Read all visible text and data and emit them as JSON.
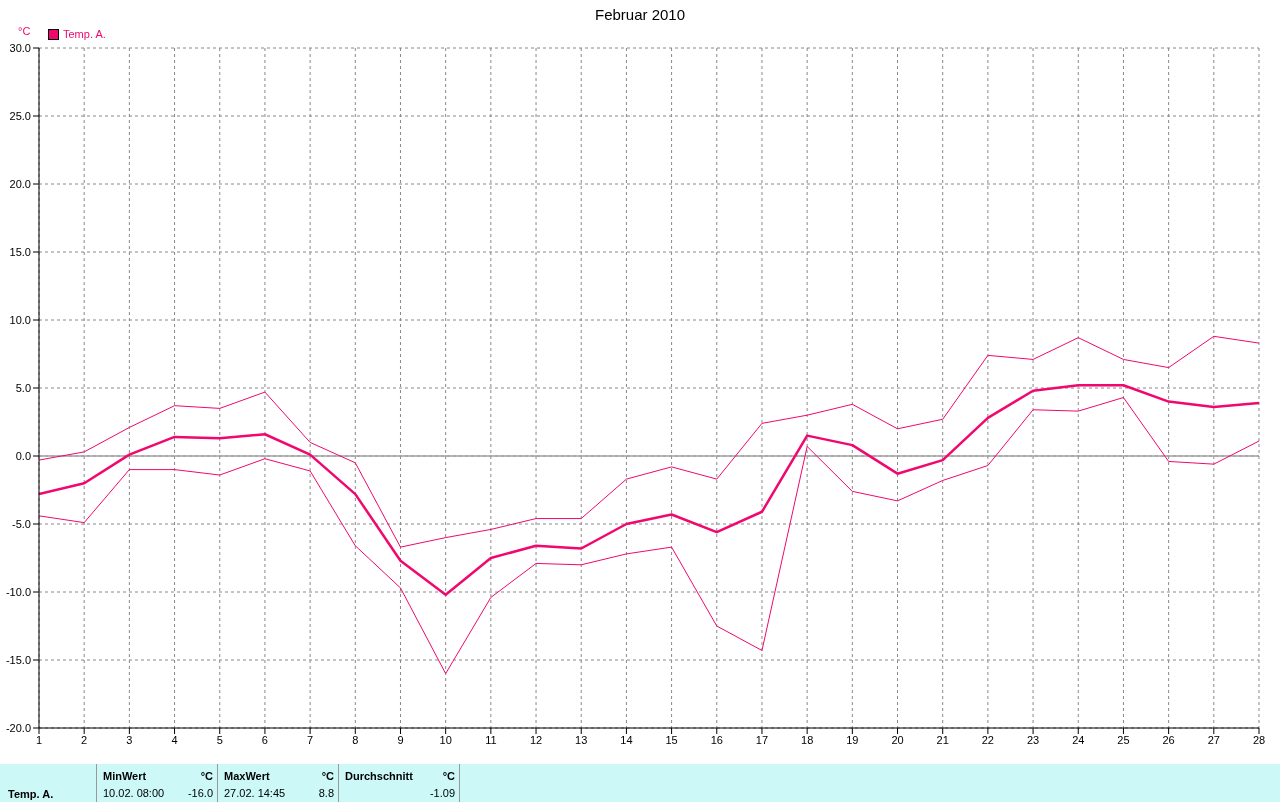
{
  "chart_data": {
    "type": "line",
    "title": "Februar 2010",
    "ylabel": "°C",
    "x": [
      1,
      2,
      3,
      4,
      5,
      6,
      7,
      8,
      9,
      10,
      11,
      12,
      13,
      14,
      15,
      16,
      17,
      18,
      19,
      20,
      21,
      22,
      23,
      24,
      25,
      26,
      27,
      28
    ],
    "series": [
      {
        "name": "Temp. A.",
        "color": "#f0086e",
        "values": [
          -2.8,
          -2.0,
          0.1,
          1.4,
          1.3,
          1.6,
          0.1,
          -2.8,
          -7.7,
          -10.2,
          -7.5,
          -6.6,
          -6.8,
          -5.0,
          -4.3,
          -5.6,
          -4.1,
          1.5,
          0.8,
          -1.3,
          -0.3,
          2.8,
          4.8,
          5.2,
          5.2,
          4.0,
          3.6,
          3.9
        ]
      },
      {
        "color": "#f0086e",
        "values": [
          -0.3,
          0.3,
          2.1,
          3.7,
          3.5,
          4.7,
          1.0,
          -0.5,
          -6.7,
          -6.0,
          -5.4,
          -4.6,
          -4.6,
          -1.7,
          -0.8,
          -1.7,
          2.4,
          3.0,
          3.8,
          2.0,
          2.7,
          7.4,
          7.1,
          8.7,
          7.1,
          6.5,
          8.8,
          8.3
        ]
      },
      {
        "color": "#f0086e",
        "values": [
          -4.4,
          -4.9,
          -1.0,
          -1.0,
          -1.4,
          -0.2,
          -1.1,
          -6.6,
          -9.7,
          -16.0,
          -10.4,
          -7.9,
          -8.0,
          -7.2,
          -6.7,
          -12.5,
          -14.3,
          0.7,
          -2.6,
          -3.3,
          -1.8,
          -0.7,
          3.4,
          3.3,
          4.3,
          -0.4,
          -0.6,
          1.1
        ]
      }
    ],
    "xlim": [
      1,
      28
    ],
    "xticks": [
      1,
      2,
      3,
      4,
      5,
      6,
      7,
      8,
      9,
      10,
      11,
      12,
      13,
      14,
      15,
      16,
      17,
      18,
      19,
      20,
      21,
      22,
      23,
      24,
      25,
      26,
      27,
      28
    ],
    "ylim": [
      -20,
      30
    ],
    "yticks": [
      {
        "value": -20,
        "label": "-20.0"
      },
      {
        "value": -15,
        "label": "-15.0"
      },
      {
        "value": -10,
        "label": "-10.0"
      },
      {
        "value": -5,
        "label": "-5.0"
      },
      {
        "value": 0,
        "label": "0.0"
      },
      {
        "value": 5,
        "label": "5.0"
      },
      {
        "value": 10,
        "label": "10.0"
      },
      {
        "value": 15,
        "label": "15.0"
      },
      {
        "value": 20,
        "label": "20.0"
      },
      {
        "value": 25,
        "label": "25.0"
      },
      {
        "value": 30,
        "label": "30.0"
      }
    ],
    "ref_lines": [
      {
        "axis": "y",
        "value": 0,
        "color": "#a0a0a0"
      }
    ],
    "grid": true,
    "legend": "top left",
    "marker": "none",
    "line_style": "solid",
    "annotations": [
      "Temp. A.",
      "MinWert",
      "°C",
      "10.02.  08:00",
      "-16.0",
      "MaxWert",
      "°C",
      "27.02.  14:45",
      "8.8",
      "Durchschnitt",
      "°C",
      "-1.09"
    ]
  }
}
